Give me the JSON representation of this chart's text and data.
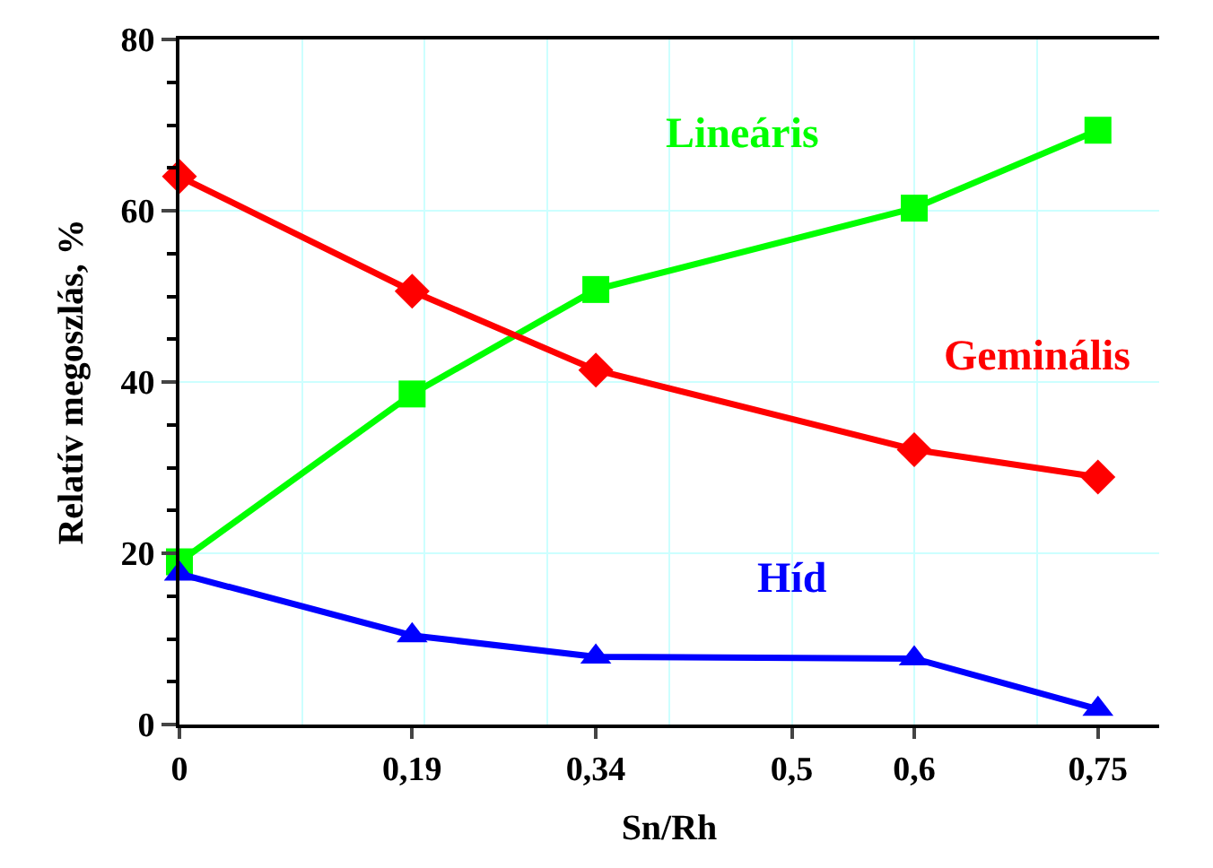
{
  "chart_data": {
    "type": "line",
    "xlabel": "Sn/Rh",
    "ylabel": "Relatív megoszlás, %",
    "x": [
      0,
      0.19,
      0.34,
      0.6,
      0.75
    ],
    "xlim": [
      0,
      0.8
    ],
    "xticks": [
      0,
      {
        "value": 0.19,
        "label": "0,19"
      },
      {
        "value": 0.34,
        "label": "0,34"
      },
      {
        "value": 0.5,
        "label": "0,5"
      },
      {
        "value": 0.6,
        "label": "0,6"
      },
      {
        "value": 0.75,
        "label": "0,75"
      }
    ],
    "ylim": [
      0,
      80
    ],
    "yticks": [
      0,
      20,
      40,
      60,
      80
    ],
    "grid": true,
    "legend": false,
    "series": [
      {
        "name": "Lineáris",
        "color": "#00ff00",
        "marker": "square",
        "values": [
          19,
          38.6,
          50.8,
          60.3,
          69.4
        ]
      },
      {
        "name": "Geminális",
        "color": "#ff0000",
        "marker": "diamond",
        "values": [
          64,
          50.6,
          41.4,
          32.1,
          28.9
        ]
      },
      {
        "name": "Híd",
        "color": "#0000ff",
        "marker": "triangle",
        "values": [
          17.6,
          10.4,
          7.9,
          7.7,
          1.8
        ]
      }
    ]
  }
}
